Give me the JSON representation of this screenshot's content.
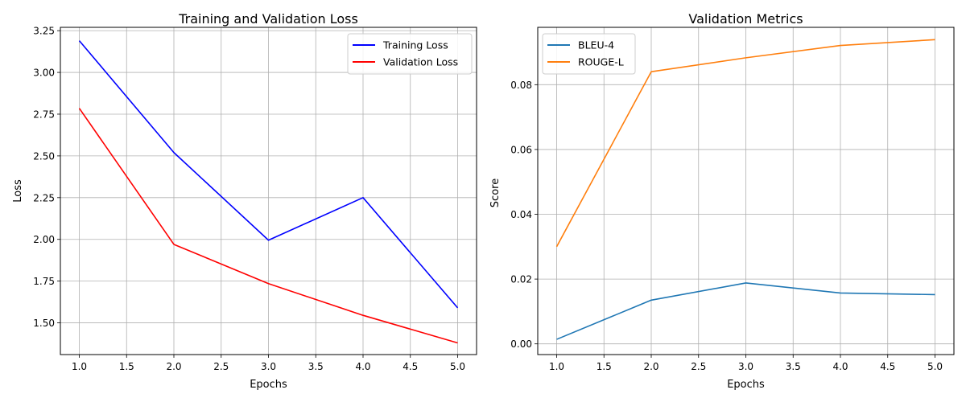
{
  "chart_data": [
    {
      "type": "line",
      "title": "Training and Validation Loss",
      "xlabel": "Epochs",
      "ylabel": "Loss",
      "x": [
        1.0,
        2.0,
        3.0,
        4.0,
        5.0
      ],
      "xlim": [
        0.8,
        5.2
      ],
      "ylim": [
        1.31,
        3.27
      ],
      "xticks": [
        1.0,
        1.5,
        2.0,
        2.5,
        3.0,
        3.5,
        4.0,
        4.5,
        5.0
      ],
      "xtick_labels": [
        "1.0",
        "1.5",
        "2.0",
        "2.5",
        "3.0",
        "3.5",
        "4.0",
        "4.5",
        "5.0"
      ],
      "yticks": [
        1.5,
        1.75,
        2.0,
        2.25,
        2.5,
        2.75,
        3.0,
        3.25
      ],
      "ytick_labels": [
        "1.50",
        "1.75",
        "2.00",
        "2.25",
        "2.50",
        "2.75",
        "3.00",
        "3.25"
      ],
      "grid": true,
      "legend_position": "top-right",
      "series": [
        {
          "name": "Training Loss",
          "color": "#0000ff",
          "values": [
            3.19,
            2.52,
            1.995,
            2.25,
            1.59
          ]
        },
        {
          "name": "Validation Loss",
          "color": "#ff0000",
          "values": [
            2.785,
            1.97,
            1.735,
            1.545,
            1.38
          ]
        }
      ]
    },
    {
      "type": "line",
      "title": "Validation Metrics",
      "xlabel": "Epochs",
      "ylabel": "Score",
      "x": [
        1.0,
        2.0,
        3.0,
        4.0,
        5.0
      ],
      "xlim": [
        0.8,
        5.2
      ],
      "ylim": [
        -0.0033,
        0.0977
      ],
      "xticks": [
        1.0,
        1.5,
        2.0,
        2.5,
        3.0,
        3.5,
        4.0,
        4.5,
        5.0
      ],
      "xtick_labels": [
        "1.0",
        "1.5",
        "2.0",
        "2.5",
        "3.0",
        "3.5",
        "4.0",
        "4.5",
        "5.0"
      ],
      "yticks": [
        0.0,
        0.02,
        0.04,
        0.06,
        0.08
      ],
      "ytick_labels": [
        "0.00",
        "0.02",
        "0.04",
        "0.06",
        "0.08"
      ],
      "grid": true,
      "legend_position": "top-left",
      "series": [
        {
          "name": "BLEU-4",
          "color": "#1f77b4",
          "values": [
            0.0014,
            0.0135,
            0.0188,
            0.0157,
            0.0152
          ]
        },
        {
          "name": "ROUGE-L",
          "color": "#ff7f0e",
          "values": [
            0.03,
            0.084,
            0.0883,
            0.0921,
            0.0939
          ]
        }
      ]
    }
  ]
}
